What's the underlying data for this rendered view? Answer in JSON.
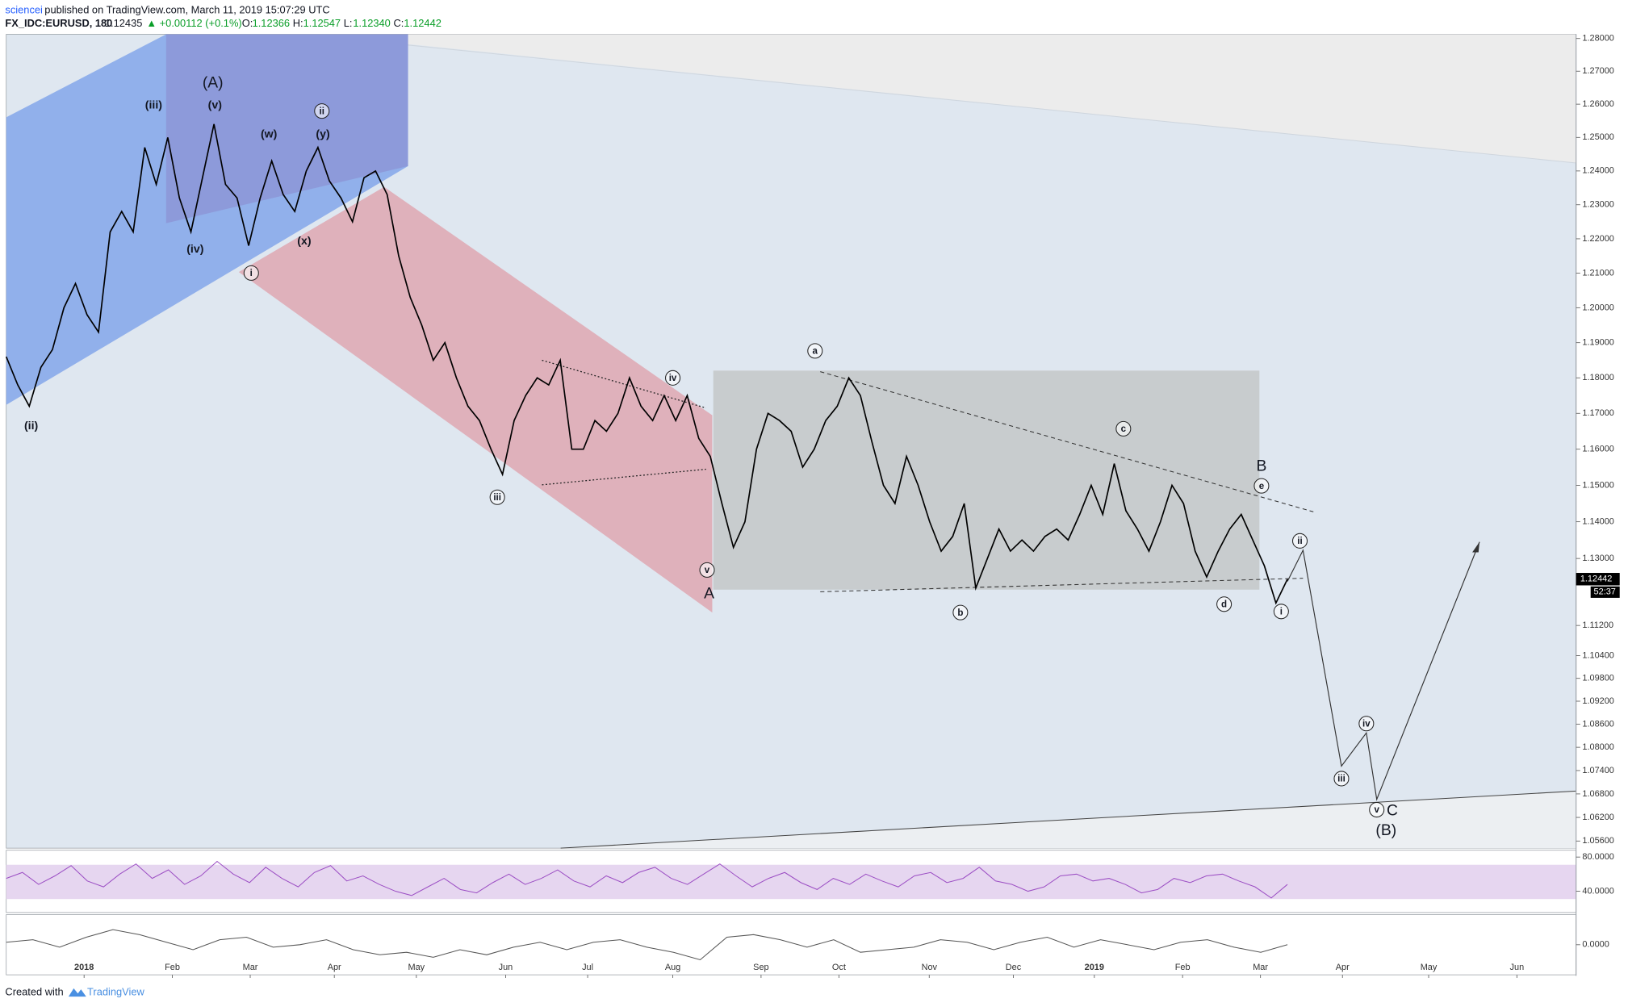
{
  "header": {
    "author": "sciencei",
    "published": "published on TradingView.com, March 11, 2019 15:07:29 UTC",
    "symbol": "FX_IDC:EURUSD, 180",
    "last": "1.12435",
    "change": "▲ +0.00112 (+0.1%)",
    "open_label": "O:",
    "open": "1.12366",
    "high_label": "H:",
    "high": "1.12547",
    "low_label": "L:",
    "low": "1.12340",
    "close_label": "C:",
    "close": "1.12442"
  },
  "footer": {
    "created": "Created with",
    "brand": "TradingView"
  },
  "chart_data": [
    {
      "type": "line",
      "color": "#000000",
      "log": true,
      "ylim": [
        1.0542,
        1.2813
      ],
      "yticks": [
        {
          "value": 1.28,
          "label": "1.28000"
        },
        {
          "value": 1.27,
          "label": "1.27000"
        },
        {
          "value": 1.26,
          "label": "1.26000"
        },
        {
          "value": 1.25,
          "label": "1.25000"
        },
        {
          "value": 1.24,
          "label": "1.24000"
        },
        {
          "value": 1.23,
          "label": "1.23000"
        },
        {
          "value": 1.22,
          "label": "1.22000"
        },
        {
          "value": 1.21,
          "label": "1.21000"
        },
        {
          "value": 1.2,
          "label": "1.20000"
        },
        {
          "value": 1.19,
          "label": "1.19000"
        },
        {
          "value": 1.18,
          "label": "1.18000"
        },
        {
          "value": 1.17,
          "label": "1.17000"
        },
        {
          "value": 1.16,
          "label": "1.16000"
        },
        {
          "value": 1.15,
          "label": "1.15000"
        },
        {
          "value": 1.14,
          "label": "1.14000"
        },
        {
          "value": 1.13,
          "label": "1.13000"
        },
        {
          "value": 1.112,
          "label": "1.11200"
        },
        {
          "value": 1.104,
          "label": "1.10400"
        },
        {
          "value": 1.098,
          "label": "1.09800"
        },
        {
          "value": 1.092,
          "label": "1.09200"
        },
        {
          "value": 1.086,
          "label": "1.08600"
        },
        {
          "value": 1.08,
          "label": "1.08000"
        },
        {
          "value": 1.074,
          "label": "1.07400"
        },
        {
          "value": 1.068,
          "label": "1.06800"
        },
        {
          "value": 1.062,
          "label": "1.06200"
        },
        {
          "value": 1.056,
          "label": "1.05600"
        }
      ],
      "x_tick_labels": [
        "2018",
        "Feb",
        "Mar",
        "Apr",
        "May",
        "Jun",
        "Jul",
        "Aug",
        "Sep",
        "Oct",
        "Nov",
        "Dec",
        "2019",
        "Feb",
        "Mar",
        "Apr",
        "May",
        "Jun"
      ],
      "values": [
        1.186,
        1.178,
        1.172,
        1.183,
        1.188,
        1.2,
        1.207,
        1.198,
        1.193,
        1.222,
        1.228,
        1.222,
        1.247,
        1.236,
        1.25,
        1.232,
        1.222,
        1.238,
        1.254,
        1.236,
        1.232,
        1.218,
        1.232,
        1.243,
        1.233,
        1.228,
        1.24,
        1.247,
        1.237,
        1.232,
        1.225,
        1.238,
        1.24,
        1.233,
        1.215,
        1.203,
        1.195,
        1.185,
        1.19,
        1.18,
        1.172,
        1.168,
        1.16,
        1.153,
        1.168,
        1.175,
        1.18,
        1.178,
        1.185,
        1.16,
        1.16,
        1.168,
        1.165,
        1.17,
        1.18,
        1.172,
        1.168,
        1.175,
        1.168,
        1.175,
        1.163,
        1.158,
        1.145,
        1.133,
        1.14,
        1.16,
        1.17,
        1.168,
        1.165,
        1.155,
        1.16,
        1.168,
        1.172,
        1.18,
        1.175,
        1.162,
        1.15,
        1.145,
        1.158,
        1.15,
        1.14,
        1.132,
        1.136,
        1.145,
        1.122,
        1.13,
        1.138,
        1.132,
        1.135,
        1.132,
        1.136,
        1.138,
        1.135,
        1.142,
        1.15,
        1.142,
        1.156,
        1.143,
        1.138,
        1.132,
        1.14,
        1.15,
        1.145,
        1.132,
        1.125,
        1.132,
        1.138,
        1.142,
        1.135,
        1.128,
        1.118,
        1.12442
      ],
      "last_price": {
        "value": 1.12442,
        "label": "1.12442"
      },
      "countdown": "52:37",
      "wave_labels": [
        "(A)",
        "(iii)",
        "(v)",
        "(w)",
        "ii",
        "(y)",
        "(iv)",
        "i",
        "(x)",
        "(ii)",
        "iii",
        "iv",
        "v",
        "A",
        "a",
        "b",
        "c",
        "B",
        "e",
        "d",
        "ii",
        "i",
        "iv",
        "iii",
        "v",
        "C",
        "(B)"
      ]
    },
    {
      "type": "line",
      "color": "#9c4fc4",
      "ylim": [
        15,
        88
      ],
      "yticks": [
        {
          "value": 80,
          "label": "80.0000"
        },
        {
          "value": 40,
          "label": "40.0000"
        }
      ],
      "values": [
        55,
        62,
        48,
        58,
        70,
        52,
        45,
        60,
        72,
        55,
        65,
        48,
        58,
        75,
        60,
        50,
        68,
        55,
        45,
        62,
        70,
        52,
        58,
        48,
        40,
        35,
        45,
        55,
        42,
        38,
        50,
        60,
        48,
        55,
        65,
        52,
        45,
        58,
        50,
        62,
        68,
        55,
        48,
        60,
        72,
        58,
        45,
        55,
        62,
        50,
        42,
        55,
        48,
        60,
        52,
        45,
        58,
        62,
        50,
        55,
        68,
        52,
        48,
        40,
        45,
        58,
        60,
        52,
        55,
        48,
        38,
        42,
        55,
        50,
        58,
        60,
        52,
        45,
        32,
        48
      ]
    },
    {
      "type": "line",
      "color": "#555555",
      "ylim": [
        -0.012,
        0.012
      ],
      "yticks": [
        {
          "value": 0,
          "label": "0.0000"
        }
      ],
      "values": [
        0.001,
        0.002,
        -0.001,
        0.003,
        0.006,
        0.004,
        0.001,
        -0.002,
        0.002,
        0.003,
        -0.001,
        0.0,
        0.002,
        -0.002,
        -0.004,
        -0.003,
        -0.005,
        -0.002,
        -0.004,
        -0.001,
        0.001,
        -0.002,
        0.001,
        0.002,
        -0.001,
        -0.003,
        -0.006,
        0.003,
        0.004,
        0.002,
        -0.001,
        0.002,
        -0.003,
        -0.002,
        -0.001,
        0.002,
        0.001,
        -0.002,
        0.001,
        0.003,
        -0.001,
        0.002,
        0.0,
        -0.002,
        0.001,
        0.002,
        -0.001,
        -0.003,
        0.0
      ]
    }
  ]
}
